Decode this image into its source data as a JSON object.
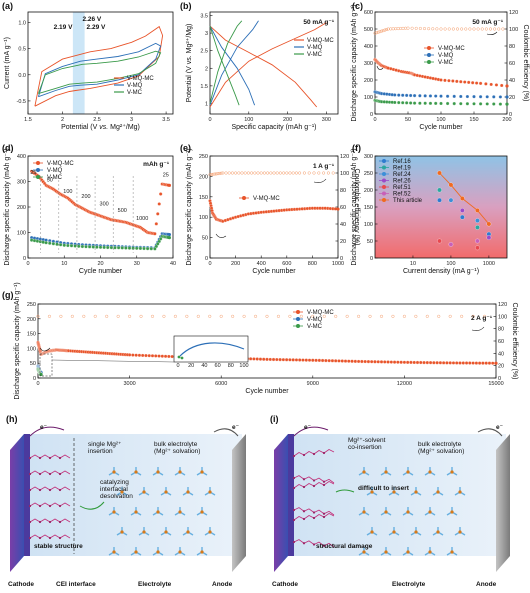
{
  "chart_data": [
    {
      "id": "a",
      "panel_label": "(a)",
      "type": "line",
      "xlabel_pre": "Potential (V ",
      "xlabel_it": "vs.",
      "xlabel_post": " Mg²⁺/Mg)",
      "ylabel": "Current (mA g⁻¹)",
      "xlim": [
        1.5,
        3.6
      ],
      "ylim": [
        -0.75,
        1.2
      ],
      "xticks": [
        1.5,
        2.0,
        2.5,
        3.0,
        3.5
      ],
      "yticks": [
        -0.5,
        0.0,
        0.5,
        1.0
      ],
      "annotations": [
        {
          "text": "2.26 V",
          "color": "#2c6fb7",
          "x": 2.26
        },
        {
          "text": "2.19 V",
          "color": "#e8542a",
          "x": 2.19
        },
        {
          "text": "2.29 V",
          "color": "#3a9a4a",
          "x": 2.29
        }
      ],
      "band": [
        2.15,
        2.32
      ],
      "series": [
        {
          "name": "V-MQ-MC",
          "color": "#e8542a",
          "x": [
            1.6,
            1.9,
            2.1,
            2.19,
            2.4,
            2.8,
            3.1,
            3.4,
            3.45,
            3.4,
            3.2,
            3.0,
            2.7,
            2.4,
            2.0,
            1.7,
            1.6
          ],
          "y": [
            -0.6,
            -0.4,
            -0.32,
            -0.3,
            -0.26,
            -0.16,
            -0.02,
            0.35,
            0.75,
            0.92,
            0.74,
            0.62,
            0.5,
            0.44,
            0.3,
            0.06,
            -0.6
          ]
        },
        {
          "name": "V-MQ",
          "color": "#2c6fb7",
          "x": [
            1.65,
            1.9,
            2.1,
            2.26,
            2.5,
            2.8,
            3.1,
            3.35,
            3.42,
            3.35,
            3.1,
            2.8,
            2.5,
            2.26,
            2.0,
            1.75,
            1.65
          ],
          "y": [
            -0.42,
            -0.3,
            -0.22,
            -0.2,
            -0.18,
            -0.1,
            0.0,
            0.3,
            0.55,
            0.6,
            0.44,
            0.35,
            0.3,
            0.26,
            0.16,
            0.02,
            -0.42
          ]
        },
        {
          "name": "V-MC",
          "color": "#3a9a4a",
          "x": [
            1.65,
            1.9,
            2.1,
            2.29,
            2.5,
            2.8,
            3.1,
            3.35,
            3.42,
            3.35,
            3.1,
            2.8,
            2.5,
            2.29,
            2.0,
            1.75,
            1.65
          ],
          "y": [
            -0.36,
            -0.26,
            -0.18,
            -0.16,
            -0.14,
            -0.07,
            0.02,
            0.22,
            0.42,
            0.45,
            0.34,
            0.26,
            0.22,
            0.2,
            0.12,
            0.0,
            -0.36
          ]
        }
      ]
    },
    {
      "id": "b",
      "panel_label": "(b)",
      "type": "line",
      "xlabel": "Specific capacity (mAh g⁻¹)",
      "ylabel": "Potential (V vs. Mg²⁺/Mg)",
      "xlim": [
        0,
        330
      ],
      "ylim": [
        0.7,
        3.6
      ],
      "xticks": [
        0,
        100,
        200,
        300
      ],
      "yticks": [
        1.0,
        1.5,
        2.0,
        2.5,
        3.0,
        3.5
      ],
      "rate_label": "50 mA g⁻¹",
      "series": [
        {
          "name": "V-MQ-MC",
          "color": "#e8542a",
          "charge": {
            "x": [
              0,
              40,
              100,
              160,
              220,
              270,
              300
            ],
            "y": [
              0.9,
              1.6,
              2.2,
              2.55,
              2.85,
              3.1,
              3.3
            ]
          },
          "discharge": {
            "x": [
              0,
              40,
              100,
              160,
              220,
              260,
              275
            ],
            "y": [
              3.2,
              2.8,
              2.45,
              2.1,
              1.6,
              1.1,
              0.9
            ]
          }
        },
        {
          "name": "V-MQ",
          "color": "#2c6fb7",
          "charge": {
            "x": [
              0,
              30,
              70,
              110,
              125
            ],
            "y": [
              0.95,
              1.8,
              2.6,
              3.1,
              3.35
            ]
          },
          "discharge": {
            "x": [
              0,
              30,
              70,
              100,
              115
            ],
            "y": [
              3.2,
              2.6,
              2.0,
              1.4,
              0.95
            ]
          }
        },
        {
          "name": "V-MC",
          "color": "#3a9a4a",
          "charge": {
            "x": [
              0,
              20,
              45,
              70,
              82
            ],
            "y": [
              1.0,
              1.9,
              2.7,
              3.2,
              3.35
            ]
          },
          "discharge": {
            "x": [
              0,
              20,
              45,
              65,
              75
            ],
            "y": [
              3.2,
              2.5,
              1.8,
              1.25,
              0.95
            ]
          }
        }
      ]
    },
    {
      "id": "c",
      "panel_label": "(c)",
      "type": "scatter",
      "xlabel": "Cycle number",
      "ylabel": "Discharge specific capacity (mAh g⁻¹)",
      "ylabel2": "Coulombic efficiency (%)",
      "xlim": [
        0,
        200
      ],
      "ylim": [
        0,
        600
      ],
      "ylim2": [
        0,
        120
      ],
      "xticks": [
        0,
        50,
        100,
        150,
        200
      ],
      "yticks": [
        0,
        100,
        200,
        300,
        400,
        500,
        600
      ],
      "yticks2": [
        0,
        20,
        40,
        60,
        80,
        100,
        120
      ],
      "rate_label": "50 mA g⁻¹",
      "series": [
        {
          "name": "V-MQ-MC",
          "color": "#e8542a",
          "x": [
            0,
            5,
            10,
            20,
            40,
            55,
            60,
            80,
            100,
            130,
            160,
            200
          ],
          "y": [
            320,
            300,
            285,
            270,
            250,
            240,
            230,
            215,
            200,
            190,
            180,
            165
          ]
        },
        {
          "name": "V-MQ",
          "color": "#2c6fb7",
          "x": [
            0,
            10,
            30,
            60,
            100,
            150,
            200
          ],
          "y": [
            130,
            120,
            112,
            108,
            105,
            102,
            100
          ]
        },
        {
          "name": "V-MC",
          "color": "#3a9a4a",
          "x": [
            0,
            10,
            30,
            60,
            100,
            150,
            200
          ],
          "y": [
            80,
            72,
            68,
            64,
            62,
            60,
            58
          ]
        }
      ],
      "efficiency": {
        "x": [
          0,
          20,
          50,
          100,
          150,
          200
        ],
        "y": [
          95,
          100,
          101,
          100,
          100,
          100
        ]
      }
    },
    {
      "id": "d",
      "panel_label": "(d)",
      "type": "scatter",
      "xlabel": "Cycle number",
      "ylabel": "Discharge specific capacity (mAh g⁻¹)",
      "xlim": [
        0,
        40
      ],
      "ylim": [
        0,
        400
      ],
      "xticks": [
        0,
        10,
        20,
        30,
        40
      ],
      "yticks": [
        0,
        100,
        200,
        300,
        400
      ],
      "unit_label": "mAh g⁻¹",
      "rate_labels": [
        "25",
        "50",
        "100",
        "200",
        "300",
        "500",
        "1000",
        "25"
      ],
      "series": [
        {
          "name": "V-MQ-MC",
          "color": "#e8542a",
          "x": [
            1,
            3,
            5,
            7,
            9,
            11,
            13,
            15,
            17,
            19,
            21,
            23,
            25,
            27,
            29,
            31,
            33,
            35,
            37,
            39
          ],
          "y": [
            340,
            320,
            285,
            270,
            250,
            235,
            210,
            195,
            180,
            170,
            160,
            150,
            145,
            140,
            130,
            120,
            100,
            95,
            290,
            285
          ]
        },
        {
          "name": "V-MQ",
          "color": "#2c6fb7",
          "x": [
            1,
            5,
            10,
            15,
            20,
            25,
            30,
            35,
            37,
            39
          ],
          "y": [
            80,
            70,
            58,
            52,
            48,
            45,
            42,
            40,
            95,
            92
          ]
        },
        {
          "name": "V-MC",
          "color": "#3a9a4a",
          "x": [
            1,
            5,
            10,
            15,
            20,
            25,
            30,
            35,
            37,
            39
          ],
          "y": [
            70,
            60,
            50,
            45,
            42,
            40,
            38,
            36,
            85,
            80
          ]
        }
      ]
    },
    {
      "id": "e",
      "panel_label": "(e)",
      "type": "scatter",
      "xlabel": "Cycle number",
      "ylabel": "Discharge specific capacity (mAh g⁻¹)",
      "ylabel2": "Coulombic efficiency (%)",
      "xlim": [
        0,
        1000
      ],
      "ylim": [
        0,
        250
      ],
      "ylim2": [
        0,
        120
      ],
      "xticks": [
        0,
        200,
        400,
        600,
        800,
        1000
      ],
      "yticks": [
        0,
        50,
        100,
        150,
        200,
        250
      ],
      "yticks2": [
        0,
        20,
        40,
        60,
        80,
        100,
        120
      ],
      "rate_label": "1 A g⁻¹",
      "series": [
        {
          "name": "V-MQ-MC",
          "color": "#e8542a",
          "x": [
            0,
            20,
            50,
            100,
            200,
            300,
            400,
            500,
            600,
            700,
            800,
            900,
            1000
          ],
          "y": [
            140,
            110,
            95,
            90,
            100,
            108,
            112,
            115,
            118,
            120,
            122,
            122,
            120
          ]
        }
      ],
      "efficiency": {
        "x": [
          0,
          100,
          300,
          500,
          700,
          1000
        ],
        "y": [
          98,
          100,
          100,
          100,
          100,
          100
        ]
      }
    },
    {
      "id": "f",
      "panel_label": "(f)",
      "type": "scatter",
      "xlabel": "Current density (mA g⁻¹)",
      "ylabel": "Discharge specific capacity (mAh g⁻¹)",
      "xscale": "log",
      "xlim": [
        1,
        3000
      ],
      "ylim": [
        0,
        300
      ],
      "xticks": [
        10,
        100,
        1000
      ],
      "yticks": [
        0,
        50,
        100,
        150,
        200,
        250,
        300
      ],
      "series": [
        {
          "name": "Ref.16",
          "color": "#2e7bcf",
          "x": [
            50,
            200,
            1000
          ],
          "y": [
            170,
            120,
            70
          ]
        },
        {
          "name": "Ref.19",
          "color": "#2aa6a0",
          "x": [
            50,
            500
          ],
          "y": [
            200,
            90
          ]
        },
        {
          "name": "Ref.24",
          "color": "#3c8fd8",
          "x": [
            100,
            500
          ],
          "y": [
            170,
            110
          ]
        },
        {
          "name": "Ref.26",
          "color": "#9b4ac8",
          "x": [
            200,
            1000
          ],
          "y": [
            140,
            60
          ]
        },
        {
          "name": "Ref.51",
          "color": "#e8484f",
          "x": [
            50,
            500
          ],
          "y": [
            50,
            30
          ]
        },
        {
          "name": "Ref.52",
          "color": "#c860b8",
          "x": [
            100,
            500
          ],
          "y": [
            40,
            50
          ]
        },
        {
          "name": "This article",
          "color": "#f06a20",
          "x": [
            50,
            100,
            200,
            500,
            1000
          ],
          "y": [
            250,
            215,
            175,
            140,
            100
          ]
        }
      ]
    },
    {
      "id": "g",
      "panel_label": "(g)",
      "type": "scatter",
      "xlabel": "Cycle number",
      "ylabel": "Discharge specific capacity (mAh g⁻¹)",
      "ylabel2": "Coulombic efficiency (%)",
      "xlim": [
        0,
        15000
      ],
      "ylim": [
        0,
        250
      ],
      "ylim2": [
        0,
        120
      ],
      "xticks": [
        0,
        3000,
        6000,
        9000,
        12000,
        15000
      ],
      "yticks": [
        0,
        50,
        100,
        150,
        200,
        250
      ],
      "yticks2": [
        0,
        20,
        40,
        60,
        80,
        100,
        120
      ],
      "rate_label": "2 A g⁻¹",
      "series": [
        {
          "name": "V-MQ-MC",
          "color": "#e8542a",
          "x": [
            0,
            100,
            300,
            600,
            1000,
            2000,
            3000,
            4500,
            6000,
            7500,
            9000,
            10500,
            12000,
            13500,
            15000
          ],
          "y": [
            120,
            80,
            90,
            95,
            92,
            85,
            78,
            72,
            68,
            63,
            60,
            56,
            53,
            51,
            50
          ]
        },
        {
          "name": "V-MQ",
          "color": "#2c6fb7",
          "x": [
            0,
            50,
            100
          ],
          "y": [
            40,
            25,
            18
          ]
        },
        {
          "name": "V-MC",
          "color": "#3a9a4a",
          "x": [
            0,
            50,
            100
          ],
          "y": [
            30,
            18,
            12
          ]
        }
      ],
      "efficiency": {
        "x": [
          0,
          3000,
          6000,
          9000,
          12000,
          15000
        ],
        "y": [
          100,
          100,
          100,
          100,
          100,
          100
        ]
      },
      "inset": {
        "xticks": [
          0,
          20,
          40,
          60,
          80,
          100
        ]
      }
    }
  ],
  "schematic_h": {
    "panel_label": "(h)",
    "electron_label": "e⁻",
    "electron_label_2": "e⁻",
    "text_insertion": "single Mg²⁺\ninsertion",
    "text_bulk": "bulk electrolyte\n(Mg²⁺ solvation)",
    "text_catalyzing": "catalyzing\ninterfacial\ndesolvation",
    "text_stable": "stable structure",
    "bottom_labels": [
      "Cathode",
      "CEI interface",
      "Electrolyte",
      "Anode"
    ]
  },
  "schematic_i": {
    "panel_label": "(i)",
    "electron_label": "e⁻",
    "electron_label_2": "e⁻",
    "text_coinsertion": "Mg²⁺-solvent\nco-insertion",
    "text_bulk": "bulk electrolyte\n(Mg²⁺ solvation)",
    "text_difficult": "difficult to insert",
    "text_damage": "structural damage",
    "bottom_labels": [
      "Cathode",
      "Electrolyte",
      "Anode"
    ]
  }
}
